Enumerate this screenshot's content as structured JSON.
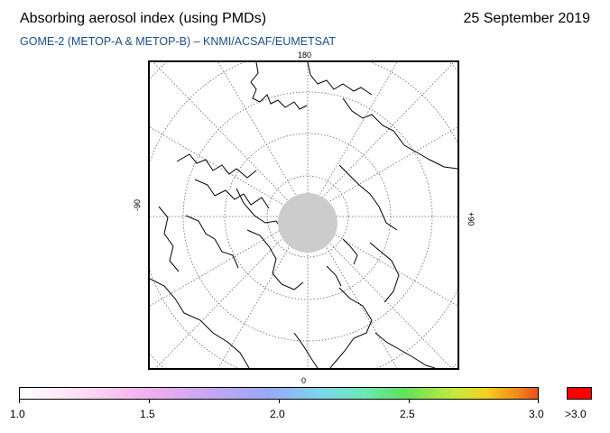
{
  "header": {
    "title": "Absorbing aerosol index (using PMDs)",
    "date": "25 September 2019",
    "subtitle": "GOME-2 (METOP-A & METOP-B)  –  KNMI/ACSAF/EUMETSAT"
  },
  "map": {
    "projection": "polar-stereographic-north",
    "longitude_labels": {
      "top": "180",
      "bottom": "0",
      "left": "-90",
      "right": "+90"
    },
    "no_data_cap_color": "#cccccc",
    "coastline_color": "#000000",
    "graticule_color": "#555555"
  },
  "colorbar": {
    "ticks": [
      "1.0",
      "1.5",
      "2.0",
      "2.5",
      "3.0"
    ],
    "overflow_label": ">3.0",
    "overflow_color": "#ff0000"
  }
}
